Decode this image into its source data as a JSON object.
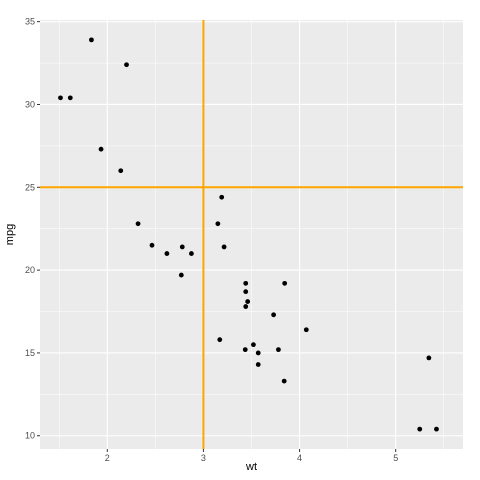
{
  "chart_data": {
    "type": "scatter",
    "xlabel": "wt",
    "ylabel": "mpg",
    "xlim": [
      1.3,
      5.7
    ],
    "ylim": [
      9.2,
      35.1
    ],
    "x_ticks": [
      2,
      3,
      4,
      5
    ],
    "y_ticks": [
      10,
      15,
      20,
      25,
      30,
      35
    ],
    "grid": true,
    "legend": "none",
    "reference_lines": {
      "vertical_x": 3,
      "horizontal_y": 25,
      "color": "#FFA500"
    },
    "colors": {
      "panel": "#EBEBEB",
      "grid": "#FFFFFF",
      "points": "#000000",
      "tick_text": "#4D4D4D"
    },
    "series": [
      {
        "x": [
          2.62,
          2.875,
          2.32,
          3.215,
          3.44,
          3.46,
          3.57,
          3.19,
          3.15,
          3.44,
          3.44,
          4.07,
          3.73,
          3.78,
          5.25,
          5.424,
          5.345,
          2.2,
          1.615,
          1.835,
          2.465,
          3.52,
          3.435,
          3.84,
          3.845,
          1.935,
          2.14,
          1.513,
          3.17,
          2.77,
          3.57,
          2.78
        ],
        "y": [
          21.0,
          21.0,
          22.8,
          21.4,
          18.7,
          18.1,
          14.3,
          24.4,
          22.8,
          19.2,
          17.8,
          16.4,
          17.3,
          15.2,
          10.4,
          10.4,
          14.7,
          32.4,
          30.4,
          33.9,
          21.5,
          15.5,
          15.2,
          13.3,
          19.2,
          27.3,
          26.0,
          30.4,
          15.8,
          19.7,
          15.0,
          21.4
        ]
      }
    ]
  }
}
